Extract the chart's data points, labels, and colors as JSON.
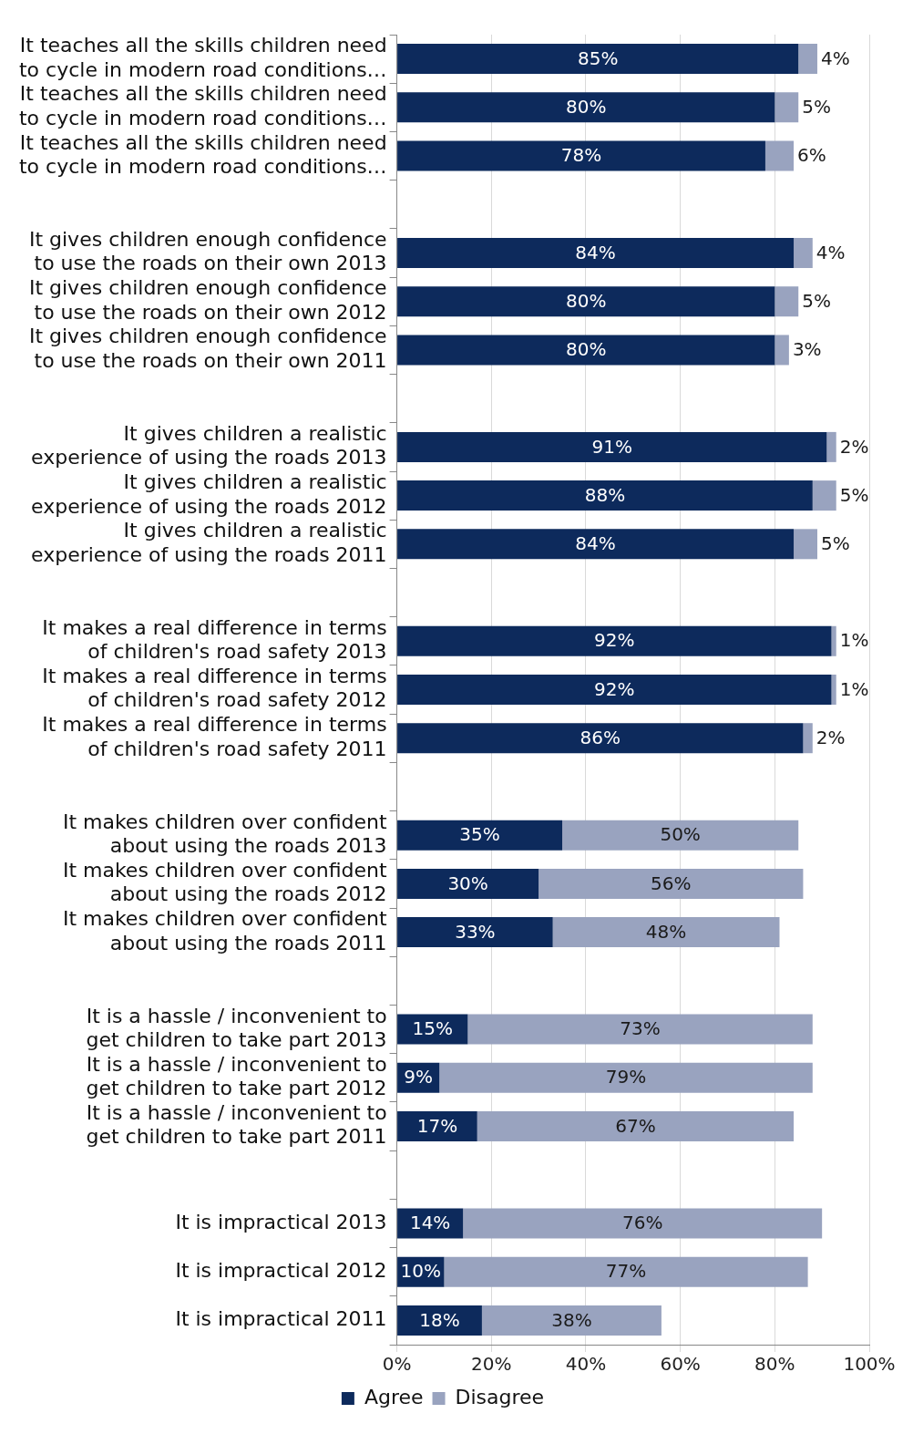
{
  "chart_data": {
    "type": "bar",
    "orientation": "horizontal",
    "stacked": true,
    "grid": "x",
    "legend": "bottom",
    "categories": [
      "It teaches all the skills children need to cycle in modern road conditions…",
      "It teaches all the skills children need to cycle in modern road conditions…",
      "It teaches all the skills children need to cycle in modern road conditions…",
      null,
      "It gives children enough confidence to use the roads on their own 2013",
      "It gives children enough confidence to use the roads on their own 2012",
      "It gives children enough confidence to use the roads on their own 2011",
      null,
      "It gives children a realistic experience of using the roads 2013",
      "It gives children a realistic experience of using the roads 2012",
      "It gives children a realistic experience of using the roads 2011",
      null,
      "It makes a real difference in terms of children's road safety 2013",
      "It makes a real difference in terms of children's road safety 2012",
      "It makes a real difference in terms of children's road safety 2011",
      null,
      "It makes children over confident about using the roads 2013",
      "It makes children over confident about using the roads 2012",
      "It makes children over confident about using the roads 2011",
      null,
      "It is a hassle / inconvenient to get children to take part 2013",
      "It is a hassle / inconvenient to get children to take part 2012",
      "It is a hassle / inconvenient to get children to take part 2011",
      null,
      "It is impractical 2013",
      "It is impractical 2012",
      "It is impractical 2011"
    ],
    "series": [
      {
        "name": "Agree",
        "color": "#0d2a5c",
        "values": [
          85,
          80,
          78,
          null,
          84,
          80,
          80,
          null,
          91,
          88,
          84,
          null,
          92,
          92,
          86,
          null,
          35,
          30,
          33,
          null,
          15,
          9,
          17,
          null,
          14,
          10,
          18
        ],
        "value_labels": [
          "85%",
          "80%",
          "78%",
          null,
          "84%",
          "80%",
          "80%",
          null,
          "91%",
          "88%",
          "84%",
          null,
          "92%",
          "92%",
          "86%",
          null,
          "35%",
          "30%",
          "33%",
          null,
          "15%",
          "9%",
          "17%",
          null,
          "14%",
          "10%",
          "18%"
        ]
      },
      {
        "name": "Disagree",
        "color": "#99a3bf",
        "values": [
          4,
          5,
          6,
          null,
          4,
          5,
          3,
          null,
          2,
          5,
          5,
          null,
          1,
          1,
          2,
          null,
          50,
          56,
          48,
          null,
          73,
          79,
          67,
          null,
          76,
          77,
          38
        ],
        "value_labels": [
          "4%",
          "5%",
          "6%",
          null,
          "4%",
          "5%",
          "3%",
          null,
          "2%",
          "5%",
          "5%",
          null,
          "1%",
          "1%",
          "2%",
          null,
          "50%",
          "56%",
          "48%",
          null,
          "73%",
          "79%",
          "67%",
          null,
          "76%",
          "77%",
          "38%"
        ]
      }
    ],
    "xlim": [
      0,
      100
    ],
    "xticks": [
      {
        "value": 0,
        "label": "0%"
      },
      {
        "value": 20,
        "label": "20%"
      },
      {
        "value": 40,
        "label": "40%"
      },
      {
        "value": 60,
        "label": "60%"
      },
      {
        "value": 80,
        "label": "80%"
      },
      {
        "value": 100,
        "label": "100%"
      }
    ]
  }
}
